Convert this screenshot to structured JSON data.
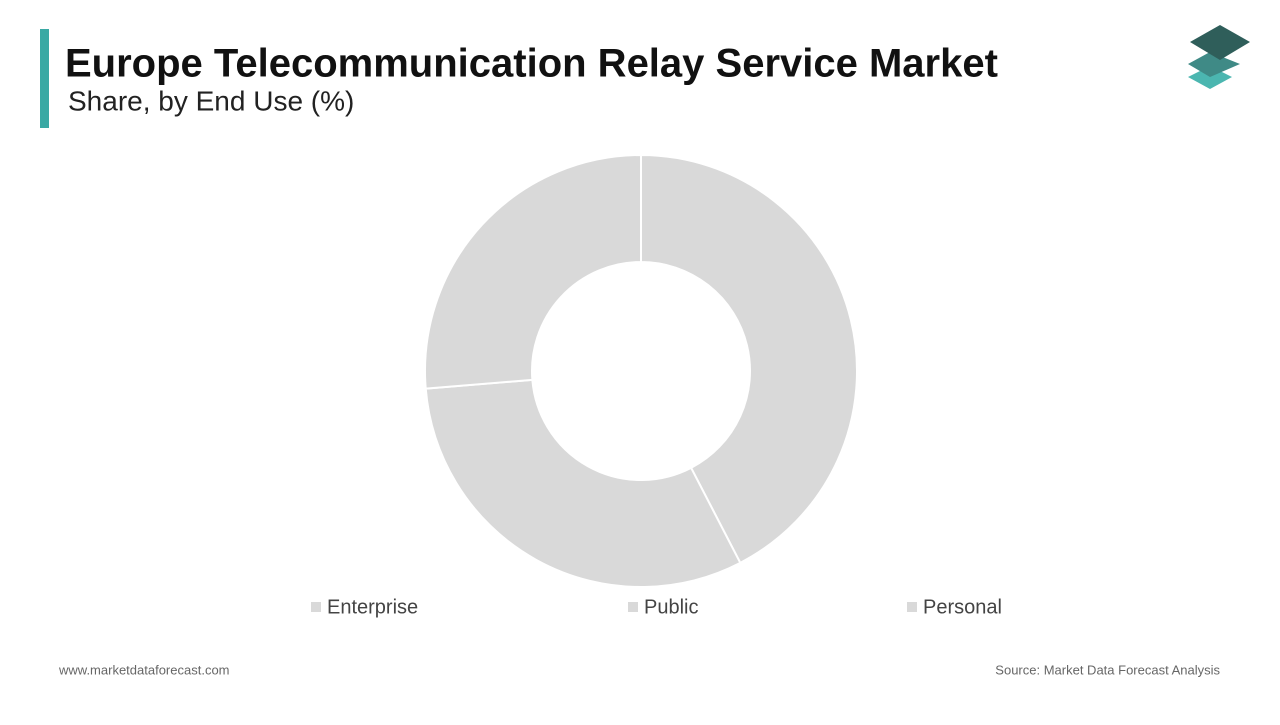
{
  "chart_data": {
    "type": "donut",
    "title": "Europe Telecommunication Relay Service Market",
    "subtitle": "Share, by End Use (%)",
    "categories": [
      "Enterprise",
      "Public",
      "Personal"
    ],
    "values": [
      42.4,
      31.3,
      26.3
    ],
    "colors": [
      "#d9d9d9",
      "#d9d9d9",
      "#d9d9d9"
    ]
  },
  "footer": {
    "website": "www.marketdataforecast.com",
    "source": "Source: Market Data Forecast Analysis"
  }
}
